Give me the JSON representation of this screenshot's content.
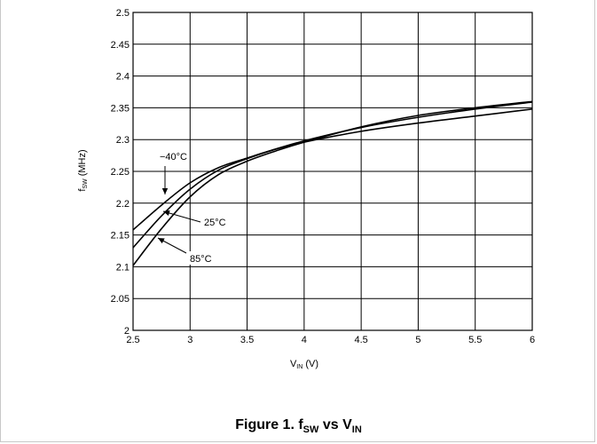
{
  "chart_data": {
    "type": "line",
    "xlabel_main": "V",
    "xlabel_sub": "IN",
    "xlabel_unit": " (V)",
    "ylabel_main": "f",
    "ylabel_sub": "SW",
    "ylabel_unit": " (MHz)",
    "xlim": [
      2.5,
      6
    ],
    "ylim": [
      2.0,
      2.5
    ],
    "xticks": [
      "2.5",
      "3",
      "3.5",
      "4",
      "4.5",
      "5",
      "5.5",
      "6"
    ],
    "yticks": [
      "2",
      "2.05",
      "2.1",
      "2.15",
      "2.2",
      "2.25",
      "2.3",
      "2.35",
      "2.4",
      "2.45",
      "2.5"
    ],
    "grid": true,
    "series": [
      {
        "name": "−40°C",
        "x": [
          2.5,
          2.75,
          3.0,
          3.25,
          3.5,
          3.75,
          4.0,
          4.5,
          5.0,
          5.5,
          6.0
        ],
        "y": [
          2.158,
          2.197,
          2.232,
          2.256,
          2.271,
          2.285,
          2.296,
          2.313,
          2.326,
          2.337,
          2.348
        ]
      },
      {
        "name": "25°C",
        "x": [
          2.5,
          2.75,
          3.0,
          3.25,
          3.5,
          3.75,
          4.0,
          4.5,
          5.0,
          5.5,
          6.0
        ],
        "y": [
          2.13,
          2.18,
          2.222,
          2.252,
          2.27,
          2.285,
          2.298,
          2.319,
          2.335,
          2.348,
          2.359
        ]
      },
      {
        "name": "85°C",
        "x": [
          2.5,
          2.75,
          3.0,
          3.25,
          3.5,
          3.75,
          4.0,
          4.5,
          5.0,
          5.5,
          6.0
        ],
        "y": [
          2.102,
          2.16,
          2.21,
          2.245,
          2.266,
          2.282,
          2.296,
          2.32,
          2.338,
          2.35,
          2.36
        ]
      }
    ],
    "annotations": [
      "−40°C",
      "25°C",
      "85°C"
    ]
  },
  "caption": {
    "prefix": "Figure 1. f",
    "sub1": "SW",
    "middle": " vs V",
    "sub2": "IN"
  }
}
